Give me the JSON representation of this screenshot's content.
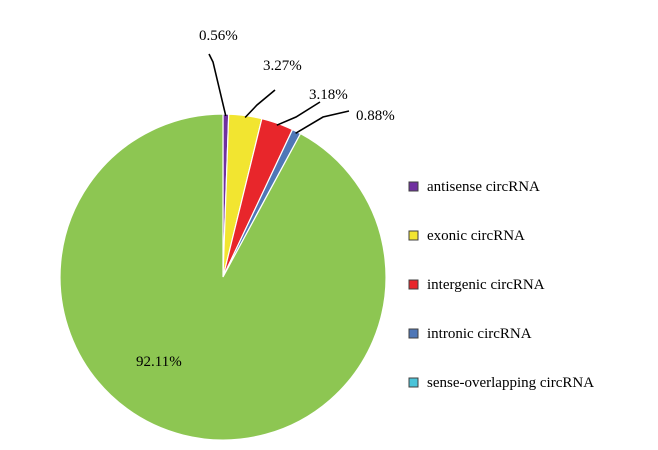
{
  "chart_data": {
    "type": "pie",
    "categories": [
      "antisense circRNA",
      "exonic circRNA",
      "intergenic circRNA",
      "intronic circRNA",
      "sense-overlapping circRNA"
    ],
    "values": [
      0.56,
      3.27,
      3.18,
      0.88,
      92.11
    ],
    "labels": [
      "0.56%",
      "3.27%",
      "3.18%",
      "0.88%",
      "92.11%"
    ],
    "colors": [
      "#7030A0",
      "#F2E530",
      "#E8262B",
      "#4F77B7",
      "#8DC652"
    ],
    "legend_swatch_colors": [
      "#7030A0",
      "#F2E530",
      "#E8262B",
      "#4F77B7",
      "#4BC4D9"
    ],
    "legend_position": "right",
    "start": "top, clockwise"
  }
}
